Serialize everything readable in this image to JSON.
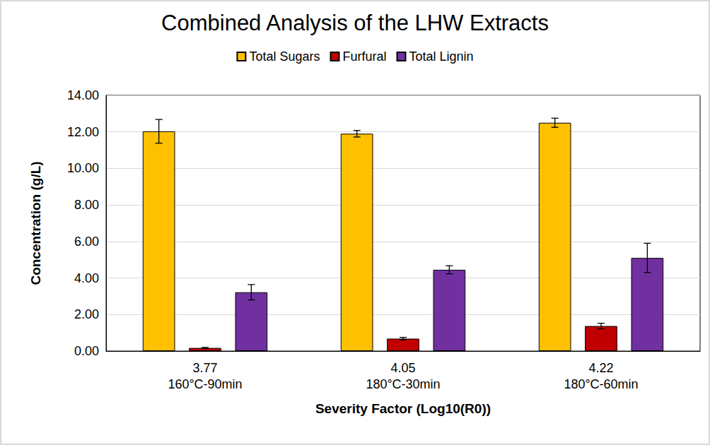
{
  "chart_data": {
    "type": "bar",
    "title": "Combined Analysis of the LHW Extracts",
    "x_label": "Severity Factor (Log10(R0))",
    "y_label": "Concentration (g/L)",
    "categories": [
      "3.77\n160°C-90min",
      "4.05\n180°C-30min",
      "4.22\n180°C-60min"
    ],
    "series": [
      {
        "name": "Total Sugars",
        "color": "#FFC000",
        "values": [
          12.03,
          11.9,
          12.5
        ],
        "errors": [
          0.65,
          0.18,
          0.25
        ]
      },
      {
        "name": "Furfural",
        "color": "#C00000",
        "values": [
          0.17,
          0.68,
          1.37
        ],
        "errors": [
          0.03,
          0.07,
          0.15
        ]
      },
      {
        "name": "Total Lignin",
        "color": "#7030A0",
        "values": [
          3.22,
          4.45,
          5.1
        ],
        "errors": [
          0.42,
          0.22,
          0.8
        ]
      }
    ],
    "ylim": [
      0,
      14
    ],
    "yticks": [
      {
        "value": 0,
        "label": "0.00"
      },
      {
        "value": 2,
        "label": "2.00"
      },
      {
        "value": 4,
        "label": "4.00"
      },
      {
        "value": 6,
        "label": "6.00"
      },
      {
        "value": 8,
        "label": "8.00"
      },
      {
        "value": 10,
        "label": "10.00"
      },
      {
        "value": 12,
        "label": "12.00"
      },
      {
        "value": 14,
        "label": "14.00"
      }
    ],
    "grid": true,
    "legend": "top"
  }
}
